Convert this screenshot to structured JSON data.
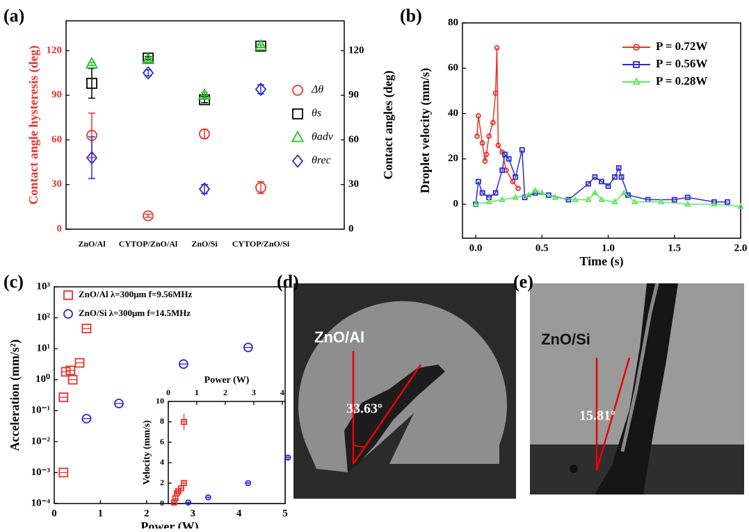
{
  "chart_data": [
    {
      "type": "scatter",
      "label": "(a)",
      "categories": [
        "ZnO/Al",
        "CYTOP/ZnO/Al",
        "ZnO/Si",
        "CYTOP/ZnO/Si"
      ],
      "ylabel": "Contact angle hysteresis (deg)",
      "y2label": "Contact angles (deg)",
      "ylim": [
        0,
        140
      ],
      "yticks": [
        0,
        30,
        60,
        90,
        120
      ],
      "y2lim": [
        0,
        140
      ],
      "y2ticks": [
        0,
        30,
        60,
        90,
        120
      ],
      "series": [
        {
          "name": "Δθ",
          "color": "#e8322a",
          "marker": "circle",
          "values": [
            63,
            9,
            64,
            28
          ],
          "errors": [
            15,
            1,
            3,
            4
          ]
        },
        {
          "name": "θs",
          "color": "#000000",
          "marker": "square",
          "axis": "y2",
          "values": [
            98,
            115,
            87,
            123
          ],
          "errors": [
            10,
            1,
            2,
            1
          ]
        },
        {
          "name": "θadv",
          "color": "#22c322",
          "marker": "triangle",
          "axis": "y2",
          "values": [
            111,
            114,
            90,
            123
          ],
          "errors": [
            1,
            1,
            2,
            1
          ]
        },
        {
          "name": "θrec",
          "color": "#2a2ad0",
          "marker": "diamond",
          "axis": "y2",
          "values": [
            48,
            105,
            27,
            94
          ],
          "errors": [
            14,
            2,
            3,
            3
          ]
        }
      ]
    },
    {
      "type": "line",
      "label": "(b)",
      "xlabel": "Time (s)",
      "ylabel": "Droplet velocity (mm/s)",
      "xlim": [
        -0.1,
        2.0
      ],
      "xticks": [
        {
          "value": 0,
          "label": "0.0"
        },
        0.5,
        {
          "value": 1,
          "label": "1.0"
        },
        1.5,
        {
          "value": 2,
          "label": "2.0"
        }
      ],
      "ylim": [
        -15,
        80
      ],
      "yticks": [
        0,
        20,
        40,
        60,
        80
      ],
      "series": [
        {
          "name": "P = 0.72W",
          "color": "#e8322a",
          "marker": "circle",
          "x": [
            0.01,
            0.02,
            0.05,
            0.07,
            0.08,
            0.1,
            0.13,
            0.15,
            0.16,
            0.17,
            0.2,
            0.23,
            0.28,
            0.32
          ],
          "values": [
            30,
            39,
            27,
            19,
            22,
            30,
            36,
            49,
            69,
            26,
            23,
            15,
            10,
            7
          ]
        },
        {
          "name": "P = 0.56W",
          "color": "#2a2ad0",
          "marker": "square",
          "x": [
            0,
            0.02,
            0.05,
            0.1,
            0.15,
            0.2,
            0.22,
            0.25,
            0.3,
            0.35,
            0.37,
            0.45,
            0.55,
            0.7,
            0.85,
            0.9,
            0.95,
            1.0,
            1.05,
            1.08,
            1.1,
            1.15,
            1.3,
            1.5,
            1.6,
            1.8,
            1.9
          ],
          "values": [
            0,
            10,
            5,
            3,
            5,
            15,
            22,
            20,
            12,
            24,
            3,
            5,
            4,
            2,
            9,
            12,
            10,
            8,
            12,
            16,
            12,
            4,
            2,
            2,
            3,
            1,
            1
          ]
        },
        {
          "name": "P = 0.28W",
          "color": "#5ee85e",
          "marker": "triangle",
          "x": [
            0,
            0.1,
            0.2,
            0.3,
            0.4,
            0.45,
            0.5,
            0.6,
            0.75,
            0.85,
            0.9,
            0.95,
            1.05,
            1.12,
            1.2,
            1.4,
            1.6,
            1.8,
            2.0
          ],
          "values": [
            0,
            1,
            2,
            3,
            4,
            6,
            5,
            3,
            2,
            2,
            5,
            2,
            1,
            5,
            1,
            1,
            0,
            0,
            -1
          ]
        }
      ]
    },
    {
      "type": "scatter",
      "label": "(c)",
      "xlabel": "Power (W)",
      "ylabel": "Acceleration (mm/s²)",
      "log_y": true,
      "xlim": [
        0,
        5
      ],
      "xticks": [
        0,
        1,
        2,
        3,
        4,
        5
      ],
      "ylim": [
        0.0001,
        1000
      ],
      "yticks": [
        {
          "value": 0.0001,
          "label": "10⁻⁴"
        },
        {
          "value": 0.001,
          "label": "10⁻³"
        },
        {
          "value": 0.01,
          "label": "10⁻²"
        },
        {
          "value": 0.1,
          "label": "10⁻¹"
        },
        {
          "value": 1,
          "label": "10⁰"
        },
        {
          "value": 10,
          "label": "10¹"
        },
        {
          "value": 100,
          "label": "10²"
        },
        {
          "value": 1000,
          "label": "10³"
        }
      ],
      "series": [
        {
          "name": "ZnO/Al  λ=300μm f=9.56MHz",
          "color": "#e8322a",
          "marker": "square",
          "x": [
            0.2,
            0.2,
            0.25,
            0.35,
            0.4,
            0.55,
            0.7
          ],
          "values": [
            0.001,
            0.27,
            1.8,
            2.0,
            1.0,
            3.5,
            45
          ]
        },
        {
          "name": "ZnO/Si  λ=300μm f=14.5MHz",
          "color": "#2a2ad0",
          "marker": "circle",
          "x": [
            0.7,
            1.4,
            2.8,
            4.2
          ],
          "values": [
            0.055,
            0.17,
            3.2,
            11
          ]
        }
      ]
    },
    {
      "type": "scatter",
      "xlabel": "Power (W)",
      "ylabel": "Velocity (mm/s)",
      "x_axis": "top",
      "xlim": [
        0,
        4.1
      ],
      "xticks": [
        0,
        1,
        2,
        3,
        4
      ],
      "ylim": [
        0,
        10
      ],
      "yticks": [
        0,
        2,
        4,
        6,
        8,
        10
      ],
      "series": [
        {
          "color": "#e8322a",
          "marker": "square",
          "x": [
            0.2,
            0.25,
            0.3,
            0.35,
            0.45,
            0.55,
            0.55
          ],
          "values": [
            0.1,
            0.5,
            1.0,
            1.2,
            1.5,
            2.0,
            8.0
          ],
          "errors": [
            0.1,
            0.2,
            0.2,
            0.2,
            0.2,
            0.2,
            0.8
          ]
        },
        {
          "color": "#2a2ad0",
          "marker": "circle",
          "x": [
            0.7,
            1.4,
            2.8,
            4.2
          ],
          "values": [
            0.1,
            0.6,
            2.0,
            4.5
          ],
          "errors": [
            0.1,
            0.1,
            0.1,
            0.3
          ]
        }
      ]
    }
  ],
  "panels": [
    {
      "label": "(d)",
      "sample": "ZnO/Al",
      "angle": "33.63º"
    },
    {
      "label": "(e)",
      "sample": "ZnO/Si",
      "angle": "15.81º"
    }
  ]
}
